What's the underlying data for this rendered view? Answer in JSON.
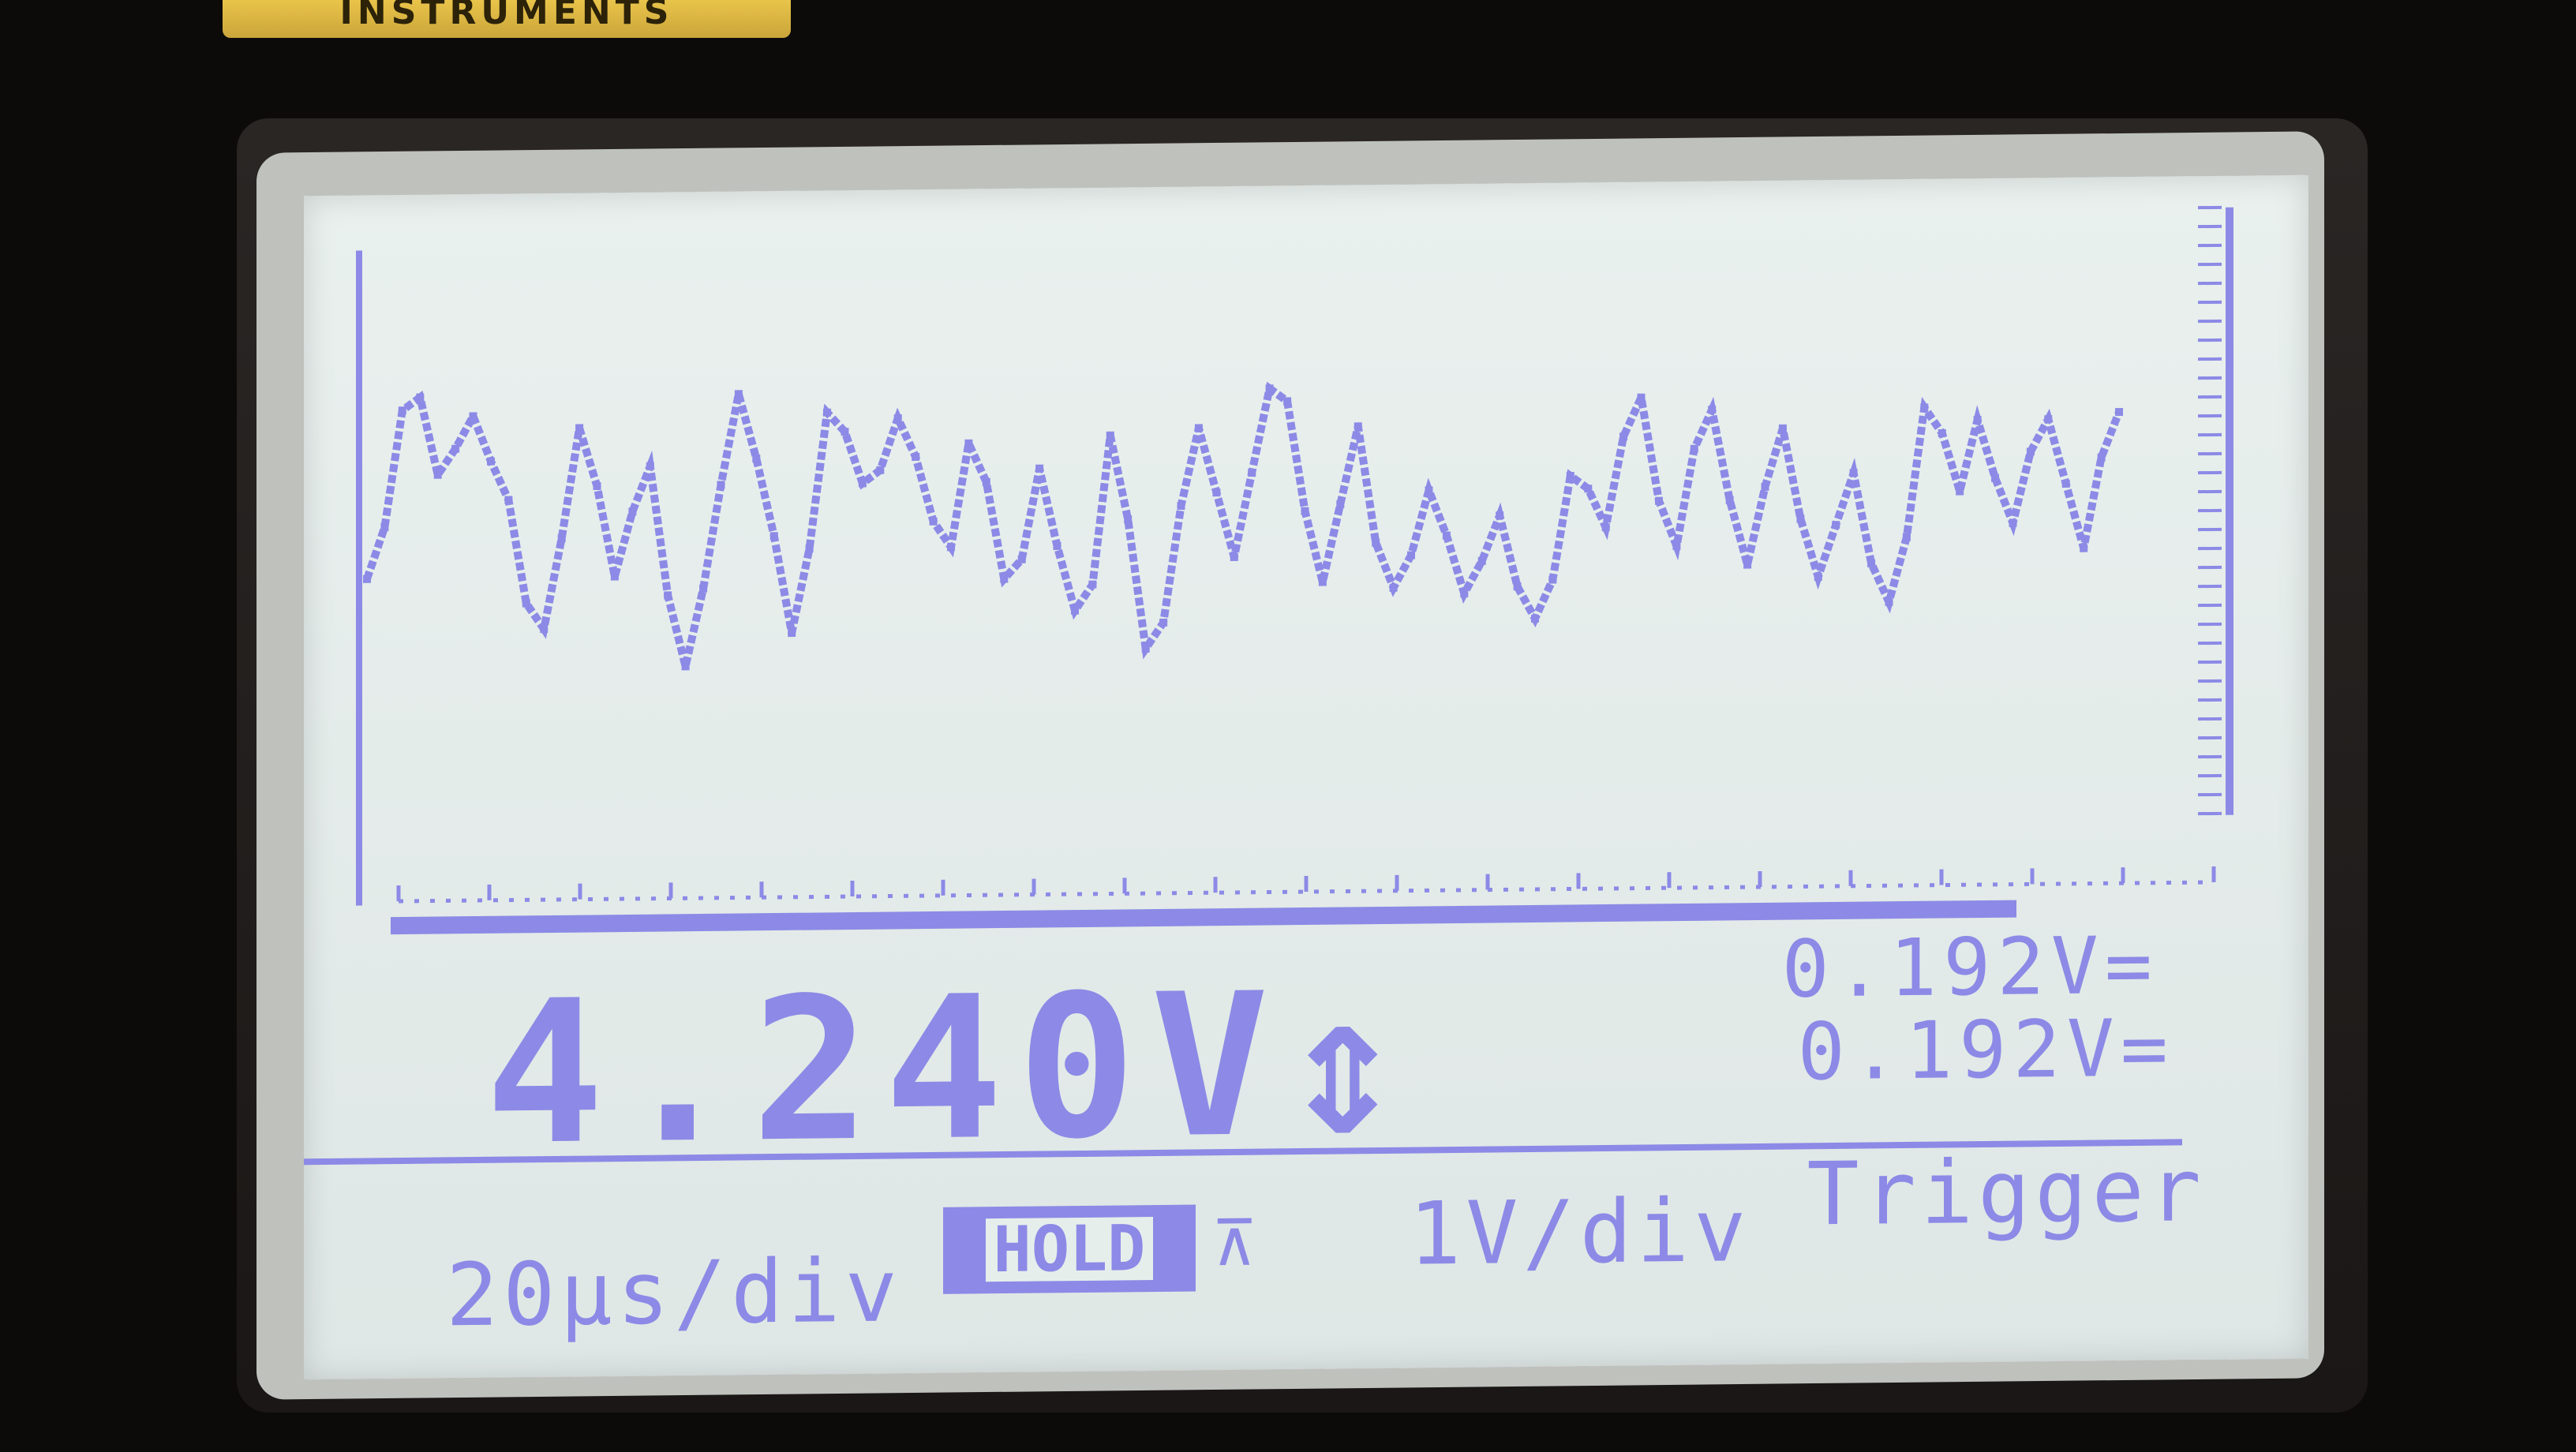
{
  "device": {
    "brand_badge": "INSTRUMENTS"
  },
  "display": {
    "reading": "4.240V",
    "reading_unit_icon": "arrow-up-down-icon",
    "cursor_a_value": "0.192V=",
    "cursor_b_value": "0.192V=",
    "timebase": "20μs/div",
    "hold_label": "HOLD",
    "volts_per_div": "1V/div",
    "trigger_label": "Trigger",
    "trigger_icon": "trigger-edge-icon",
    "colors": {
      "lcd_background": "#e6eeec",
      "segment_color": "#8c8ae6"
    }
  },
  "chart_data": {
    "type": "line",
    "title": "",
    "xlabel": "",
    "ylabel": "",
    "xlim": [
      0,
      100
    ],
    "ylim": [
      0,
      10
    ],
    "grid": false,
    "series": [
      {
        "values": [
          4.8,
          5.6,
          7.4,
          7.6,
          6.4,
          6.8,
          7.3,
          6.6,
          6.0,
          4.4,
          4.0,
          5.4,
          7.1,
          6.2,
          4.8,
          5.8,
          6.5,
          4.5,
          3.4,
          4.6,
          6.2,
          7.6,
          6.6,
          5.4,
          3.9,
          5.2,
          7.3,
          7.0,
          6.2,
          6.4,
          7.2,
          6.6,
          5.6,
          5.2,
          6.8,
          6.2,
          4.7,
          5.0,
          6.4,
          5.2,
          4.2,
          4.6,
          6.9,
          5.6,
          3.6,
          4.0,
          5.8,
          7.0,
          6.0,
          5.0,
          6.3,
          7.6,
          7.4,
          5.7,
          4.6,
          5.8,
          7.0,
          5.2,
          4.5,
          5.0,
          6.0,
          5.3,
          4.4,
          4.9,
          5.6,
          4.5,
          4.0,
          4.6,
          6.2,
          6.0,
          5.4,
          6.8,
          7.4,
          5.8,
          5.1,
          6.6,
          7.2,
          5.8,
          4.8,
          6.0,
          6.9,
          5.5,
          4.6,
          5.4,
          6.2,
          4.8,
          4.2,
          5.2,
          7.2,
          6.8,
          5.9,
          7.0,
          6.1,
          5.4,
          6.5,
          7.0,
          6.0,
          5.0,
          6.4,
          7.1
        ]
      }
    ]
  }
}
